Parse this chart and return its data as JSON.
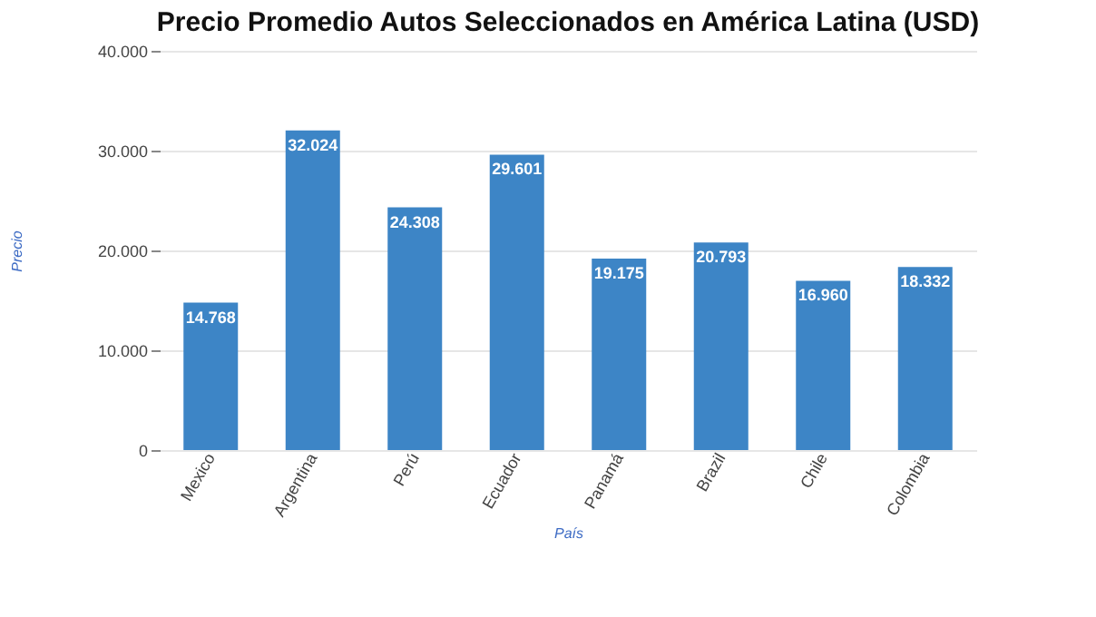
{
  "chart_data": {
    "type": "bar",
    "title": "Precio Promedio Autos Seleccionados en América Latina (USD)",
    "xlabel": "País",
    "ylabel": "Precio",
    "categories": [
      "Mexico",
      "Argentina",
      "Perú",
      "Ecuador",
      "Panamá",
      "Brazil",
      "Chile",
      "Colombia"
    ],
    "values": [
      14768,
      32024,
      24308,
      29601,
      19175,
      20793,
      16960,
      18332
    ],
    "value_labels": [
      "14.768",
      "32.024",
      "24.308",
      "29.601",
      "19.175",
      "20.793",
      "16.960",
      "18.332"
    ],
    "color": "#3d85c6",
    "ylim": [
      0,
      40000
    ],
    "yticks": [
      0,
      {
        "value": 10000,
        "label": "10.000"
      },
      {
        "value": 20000,
        "label": "20.000"
      },
      {
        "value": 30000,
        "label": "30.000"
      },
      {
        "value": 40000,
        "label": "40.000"
      }
    ],
    "grid": "y"
  }
}
